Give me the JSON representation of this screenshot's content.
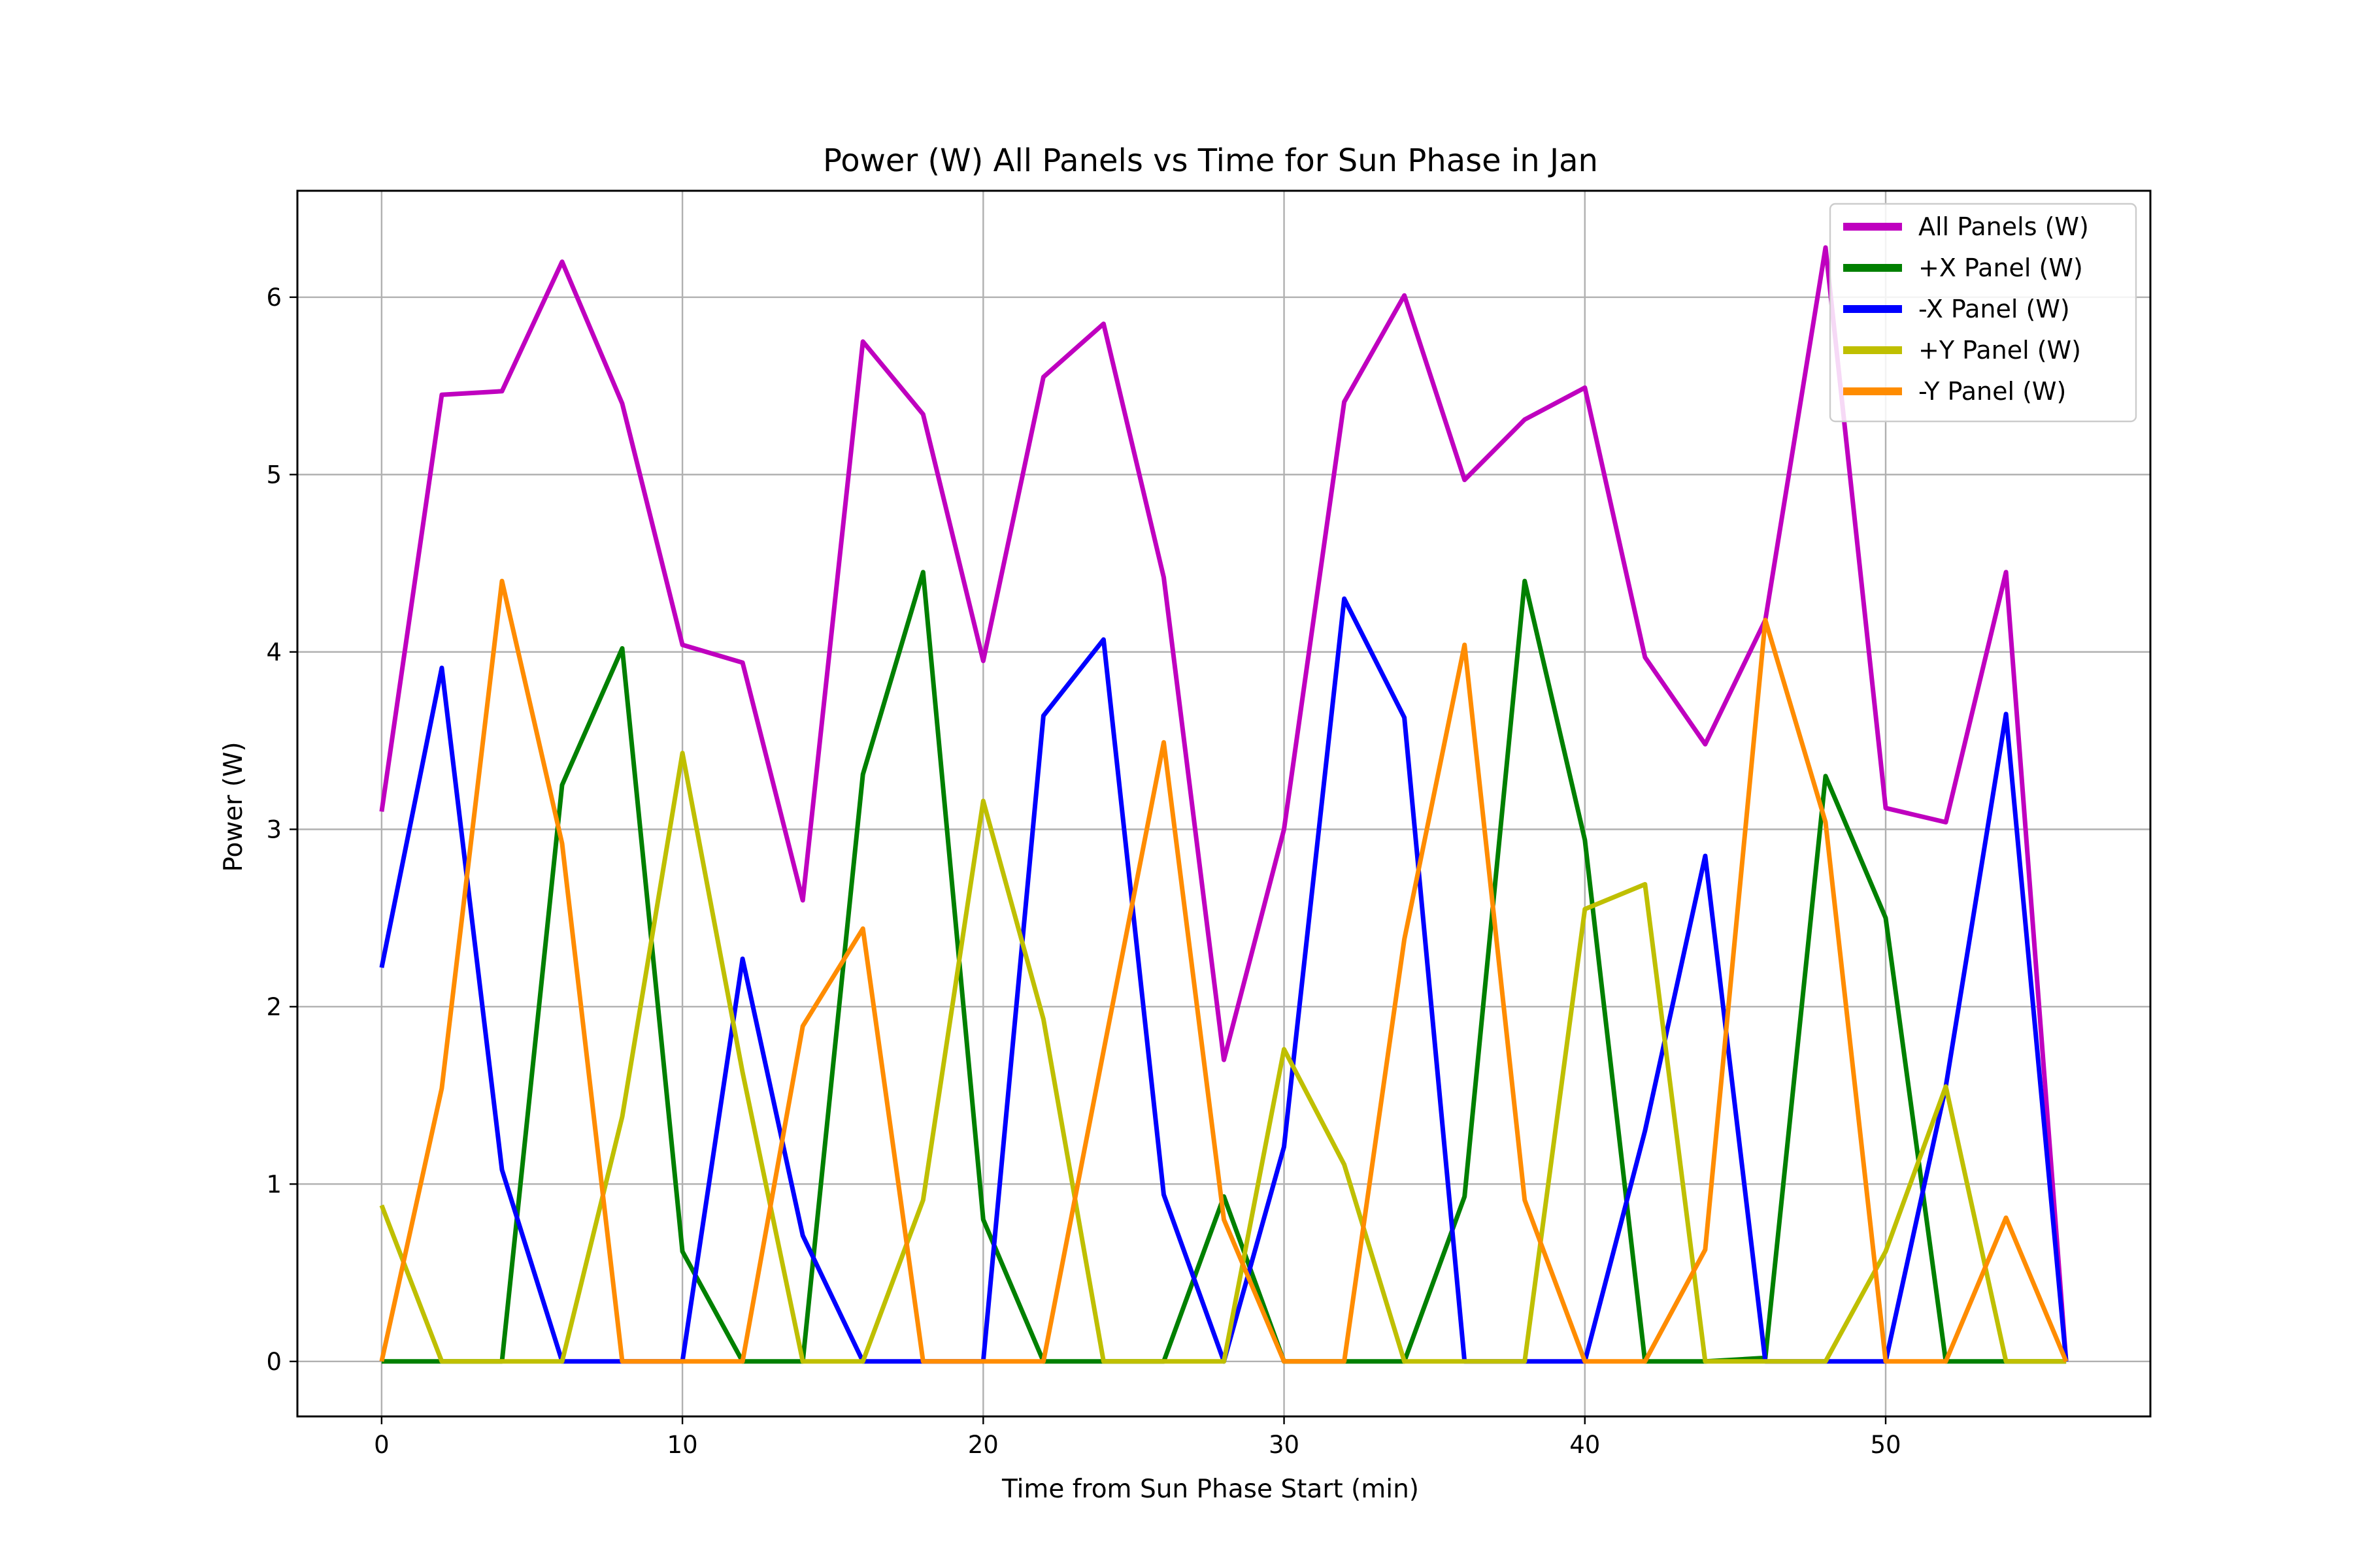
{
  "chart_data": {
    "type": "line",
    "title": "Power (W) All Panels vs Time for Sun Phase in Jan",
    "xlabel": "Time from Sun Phase Start (min)",
    "ylabel": "Power (W)",
    "xlim": [
      -2.8,
      58.8
    ],
    "ylim": [
      -0.31,
      6.6
    ],
    "xticks": [
      0,
      10,
      20,
      30,
      40,
      50
    ],
    "yticks": [
      0,
      1,
      2,
      3,
      4,
      5,
      6
    ],
    "grid": true,
    "legend_position": "top-right",
    "x": [
      0,
      2,
      4,
      6,
      8,
      10,
      12,
      14,
      16,
      18,
      20,
      22,
      24,
      26,
      28,
      30,
      32,
      34,
      36,
      38,
      40,
      42,
      44,
      46,
      48,
      50,
      52,
      54,
      56
    ],
    "series": [
      {
        "name": "All Panels (W)",
        "color": "#bf00bf",
        "values": [
          3.1,
          5.45,
          5.47,
          6.2,
          5.4,
          4.04,
          3.94,
          2.6,
          5.75,
          5.34,
          3.95,
          5.55,
          5.85,
          4.42,
          1.7,
          3.0,
          5.41,
          6.01,
          4.97,
          5.31,
          5.49,
          3.97,
          3.48,
          4.18,
          6.28,
          3.12,
          3.04,
          4.45,
          0.0
        ]
      },
      {
        "name": "+X Panel (W)",
        "color": "#008000",
        "values": [
          0.0,
          0.0,
          0.0,
          3.25,
          4.02,
          0.62,
          0.0,
          0.0,
          3.31,
          4.45,
          0.8,
          0.0,
          0.0,
          0.0,
          0.93,
          0.0,
          0.0,
          0.0,
          0.93,
          4.4,
          2.94,
          0.0,
          0.0,
          0.02,
          3.3,
          2.5,
          0.0,
          0.0,
          0.0
        ]
      },
      {
        "name": "-X Panel (W)",
        "color": "#0000ff",
        "values": [
          2.22,
          3.91,
          1.08,
          0.0,
          0.0,
          0.0,
          2.27,
          0.71,
          0.0,
          0.0,
          0.0,
          3.64,
          4.07,
          0.94,
          0.0,
          1.21,
          4.3,
          3.63,
          0.0,
          0.0,
          0.0,
          1.3,
          2.85,
          0.0,
          0.0,
          0.0,
          1.55,
          3.65,
          0.0
        ]
      },
      {
        "name": "+Y Panel (W)",
        "color": "#bfbf00",
        "values": [
          0.88,
          0.0,
          0.0,
          0.0,
          1.38,
          3.43,
          1.63,
          0.0,
          0.0,
          0.91,
          3.16,
          1.93,
          0.0,
          0.0,
          0.0,
          1.76,
          1.11,
          0.0,
          0.0,
          0.0,
          2.55,
          2.69,
          0.0,
          0.0,
          0.0,
          0.62,
          1.55,
          0.0,
          0.0
        ]
      },
      {
        "name": "-Y Panel (W)",
        "color": "#ff8c00",
        "values": [
          0.0,
          1.54,
          4.4,
          2.92,
          0.0,
          0.0,
          0.0,
          1.89,
          2.44,
          0.0,
          0.0,
          0.0,
          1.75,
          3.49,
          0.8,
          0.0,
          0.0,
          2.38,
          4.04,
          0.91,
          0.0,
          0.0,
          0.63,
          4.18,
          3.04,
          0.0,
          0.0,
          0.81,
          0.0
        ]
      }
    ]
  }
}
